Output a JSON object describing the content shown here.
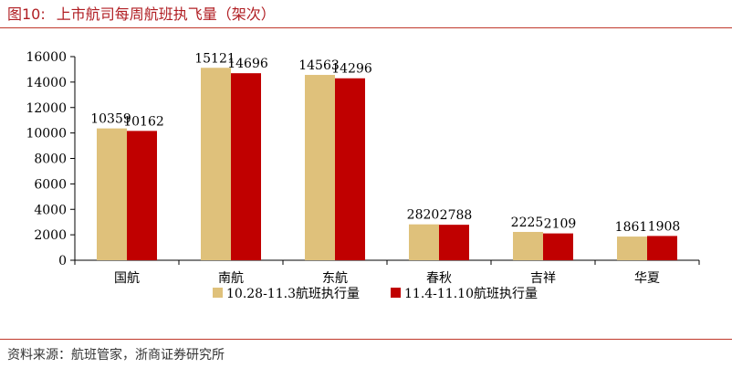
{
  "figure": {
    "label": "图10:",
    "title": "上市航司每周航班执飞量（架次）"
  },
  "source": "资料来源：航班管家，浙商证券研究所",
  "colors": {
    "title": "#b01e23",
    "rule": "#c0392b"
  },
  "chart_data": {
    "type": "bar",
    "title": "",
    "xlabel": "",
    "ylabel": "",
    "categories": [
      "国航",
      "南航",
      "东航",
      "春秋",
      "吉祥",
      "华夏"
    ],
    "series": [
      {
        "name": "10.28-11.3航班执行量",
        "color": "#dfc17b",
        "values": [
          10359,
          15121,
          14563,
          2820,
          2225,
          1861
        ],
        "labels": [
          "10359",
          "15121",
          "14563",
          "2820",
          "2225",
          "1861"
        ]
      },
      {
        "name": "11.4-11.10航班执行量",
        "color": "#c00000",
        "values": [
          10162,
          14696,
          14296,
          2788,
          2109,
          1908
        ],
        "labels": [
          "10162",
          "14696",
          "14296",
          "2788",
          "2109",
          "1908"
        ]
      }
    ],
    "ylim": [
      0,
      16000
    ],
    "yticks": [
      0,
      2000,
      4000,
      6000,
      8000,
      10000,
      12000,
      14000,
      16000
    ],
    "ytick_labels": [
      "0",
      "2000",
      "4000",
      "6000",
      "8000",
      "10000",
      "12000",
      "14000",
      "16000"
    ],
    "grid": false,
    "legend_position": "bottom"
  }
}
